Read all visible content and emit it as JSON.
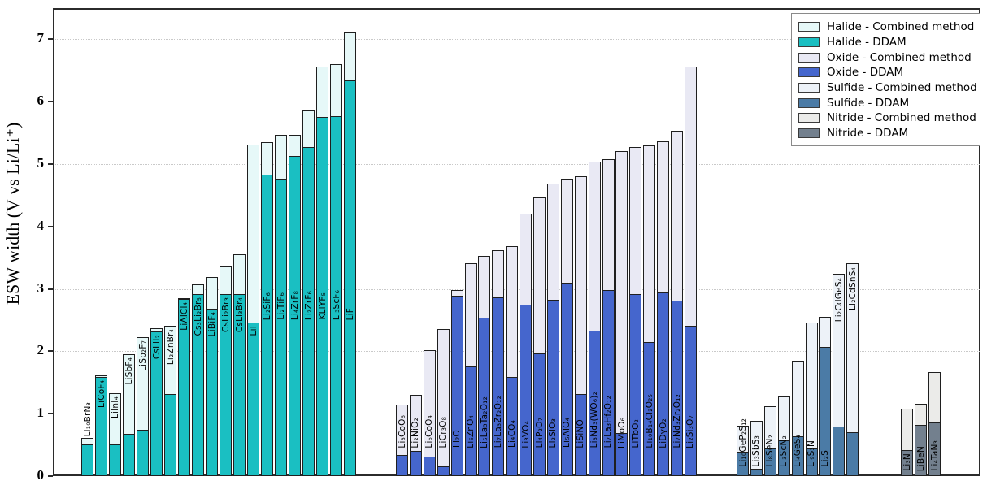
{
  "figure": {
    "y_axis_title": "ESW width (V vs Li/Li⁺)"
  },
  "axis": {
    "yticks": [
      "0",
      "1",
      "2",
      "3",
      "4",
      "5",
      "6",
      "7"
    ],
    "ylim": [
      0,
      7.5
    ],
    "grid": true
  },
  "legend": {
    "position": "top-right",
    "entries": [
      {
        "label": "Halide - Combined method",
        "color_key": "halide_combined"
      },
      {
        "label": "Halide - DDAM",
        "color_key": "halide_ddam"
      },
      {
        "label": "Oxide - Combined method",
        "color_key": "oxide_combined"
      },
      {
        "label": "Oxide - DDAM",
        "color_key": "oxide_ddam"
      },
      {
        "label": "Sulfide - Combined method",
        "color_key": "sulfide_combined"
      },
      {
        "label": "Sulfide - DDAM",
        "color_key": "sulfide_ddam"
      },
      {
        "label": "Nitride - Combined method",
        "color_key": "nitride_combined"
      },
      {
        "label": "Nitride - DDAM",
        "color_key": "nitride_ddam"
      }
    ]
  },
  "colors": {
    "halide_ddam": "#1abfc2",
    "halide_combined": "#e6f8f8",
    "oxide_ddam": "#4566cd",
    "oxide_combined": "#e9e9f4",
    "sulfide_ddam": "#4b7ba6",
    "sulfide_combined": "#edf2f8",
    "nitride_ddam": "#73808e",
    "nitride_combined": "#ebebe9",
    "bar_edge": "#1f1f1f"
  },
  "chart_data": {
    "type": "bar",
    "title": "",
    "xlabel": "",
    "ylabel": "ESW width (V vs Li/Li⁺)",
    "ylim": [
      0,
      7.5
    ],
    "grid": "horizontal-dotted",
    "legend_position": "top-right",
    "series_meaning": "Each material has two overlaid bars: electrochemical stability window width from DDAM (solid color) and from the Combined method (light color).",
    "groups": [
      {
        "name": "Halide",
        "ddam_color": "halide_ddam",
        "combined_color": "halide_combined",
        "bars": [
          {
            "label": "Li₁₀BrN₃",
            "ddam": 0.5,
            "combined": 0.6
          },
          {
            "label": "LiCoF₄",
            "ddam": 1.58,
            "combined": 1.6
          },
          {
            "label": "LiInI₄",
            "ddam": 0.5,
            "combined": 1.31
          },
          {
            "label": "LiSbF₄",
            "ddam": 0.67,
            "combined": 1.94
          },
          {
            "label": "LiSb₂F₇",
            "ddam": 0.73,
            "combined": 2.21
          },
          {
            "label": "CsLiI₂",
            "ddam": 2.3,
            "combined": 2.36
          },
          {
            "label": "Li₂ZnBr₄",
            "ddam": 1.3,
            "combined": 2.4
          },
          {
            "label": "LiAlCl₄",
            "ddam": 2.82,
            "combined": 2.84
          },
          {
            "label": "Cs₃Li₂Br₅",
            "ddam": 2.91,
            "combined": 3.06
          },
          {
            "label": "LiBiF₄",
            "ddam": 2.67,
            "combined": 3.18
          },
          {
            "label": "CsLi₂Br₃",
            "ddam": 2.9,
            "combined": 3.35
          },
          {
            "label": "CsLi₃Br₄",
            "ddam": 2.9,
            "combined": 3.54
          },
          {
            "label": "LiI",
            "ddam": 2.45,
            "combined": 5.3
          },
          {
            "label": "Li₂SiF₆",
            "ddam": 4.82,
            "combined": 5.34
          },
          {
            "label": "Li₂TiF₆",
            "ddam": 4.75,
            "combined": 5.46
          },
          {
            "label": "Li₄ZrF₈",
            "ddam": 5.12,
            "combined": 5.46
          },
          {
            "label": "Li₂ZrF₆",
            "ddam": 5.26,
            "combined": 5.85
          },
          {
            "label": "KLiYF₅",
            "ddam": 5.74,
            "combined": 6.55
          },
          {
            "label": "Li₃ScF₆",
            "ddam": 5.76,
            "combined": 6.59
          },
          {
            "label": "LiF",
            "ddam": 6.33,
            "combined": 7.1
          }
        ]
      },
      {
        "name": "Oxide",
        "ddam_color": "oxide_ddam",
        "combined_color": "oxide_combined",
        "bars": [
          {
            "label": "Li₈CoO₆",
            "ddam": 0.33,
            "combined": 1.13
          },
          {
            "label": "Li₂NiO₂",
            "ddam": 0.39,
            "combined": 1.29
          },
          {
            "label": "Li₆CoO₄",
            "ddam": 0.3,
            "combined": 2.01
          },
          {
            "label": "LiCr₃O₈",
            "ddam": 0.14,
            "combined": 2.35
          },
          {
            "label": "Li₂O",
            "ddam": 2.88,
            "combined": 2.97
          },
          {
            "label": "Li₆ZnO₄",
            "ddam": 1.74,
            "combined": 3.4
          },
          {
            "label": "Li₅La₃Ta₂O₁₂",
            "ddam": 2.53,
            "combined": 3.51
          },
          {
            "label": "Li₇La₃Zr₂O₁₂",
            "ddam": 2.85,
            "combined": 3.61
          },
          {
            "label": "Li₄CO₄",
            "ddam": 1.58,
            "combined": 3.67
          },
          {
            "label": "Li₃VO₄",
            "ddam": 2.74,
            "combined": 4.19
          },
          {
            "label": "Li₄P₂O₇",
            "ddam": 1.95,
            "combined": 4.45
          },
          {
            "label": "Li₂SiO₃",
            "ddam": 2.81,
            "combined": 4.68
          },
          {
            "label": "Li₅AlO₄",
            "ddam": 3.09,
            "combined": 4.75
          },
          {
            "label": "LiSiNO",
            "ddam": 1.3,
            "combined": 4.79
          },
          {
            "label": "Li₃Nd₃(WO₆)₂",
            "ddam": 2.32,
            "combined": 5.02
          },
          {
            "label": "Li₇La₃Hf₂O₁₂",
            "ddam": 2.97,
            "combined": 5.06
          },
          {
            "label": "LiMoO₆",
            "ddam": 0.68,
            "combined": 5.19
          },
          {
            "label": "LiTbO₂",
            "ddam": 2.9,
            "combined": 5.26
          },
          {
            "label": "Li₁₀B₁₄Cl₂O₂₅",
            "ddam": 2.13,
            "combined": 5.29
          },
          {
            "label": "LiDyO₂",
            "ddam": 2.93,
            "combined": 5.35
          },
          {
            "label": "Li₇Nd₃Zr₂O₁₂",
            "ddam": 2.8,
            "combined": 5.52
          },
          {
            "label": "Li₂Si₃O₇",
            "ddam": 2.39,
            "combined": 6.55
          }
        ]
      },
      {
        "name": "Sulfide",
        "ddam_color": "sulfide_ddam",
        "combined_color": "sulfide_combined",
        "bars": [
          {
            "label": "Li₁₀GeP₂S₁₂",
            "ddam": 0.38,
            "combined": 0.79
          },
          {
            "label": "Li₃SbS₃",
            "ddam": 0.11,
            "combined": 0.87
          },
          {
            "label": "Li₈SeN₂",
            "ddam": 0.43,
            "combined": 1.11
          },
          {
            "label": "Li₃ScN₂",
            "ddam": 0.56,
            "combined": 1.26
          },
          {
            "label": "Li₄GeS₄",
            "ddam": 0.62,
            "combined": 1.83
          },
          {
            "label": "Li₉S₃N",
            "ddam": 0.43,
            "combined": 2.45
          },
          {
            "label": "Li₂S",
            "ddam": 2.06,
            "combined": 2.54
          },
          {
            "label": "Li₂CdGeS₄",
            "ddam": 0.78,
            "combined": 3.23
          },
          {
            "label": "Li₂CdSnS₄",
            "ddam": 0.69,
            "combined": 3.4
          }
        ]
      },
      {
        "name": "Nitride",
        "ddam_color": "nitride_ddam",
        "combined_color": "nitride_combined",
        "bars": [
          {
            "label": "Li₃N",
            "ddam": 0.41,
            "combined": 1.07
          },
          {
            "label": "LiBeN",
            "ddam": 0.81,
            "combined": 1.15
          },
          {
            "label": "Li₄TaN₃",
            "ddam": 0.85,
            "combined": 1.66
          }
        ]
      }
    ]
  }
}
